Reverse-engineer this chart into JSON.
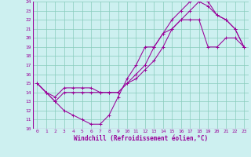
{
  "xlabel": "Windchill (Refroidissement éolien,°C)",
  "xlim": [
    -0.5,
    23.5
  ],
  "ylim": [
    10,
    24
  ],
  "xticks": [
    0,
    1,
    2,
    3,
    4,
    5,
    6,
    7,
    8,
    9,
    10,
    11,
    12,
    13,
    14,
    15,
    16,
    17,
    18,
    19,
    20,
    21,
    22,
    23
  ],
  "yticks": [
    10,
    11,
    12,
    13,
    14,
    15,
    16,
    17,
    18,
    19,
    20,
    21,
    22,
    23,
    24
  ],
  "background_color": "#cdf0f0",
  "line_color": "#990099",
  "grid_color": "#88ccbb",
  "line1_x": [
    0,
    1,
    2,
    3,
    4,
    5,
    6,
    7,
    8,
    9,
    10,
    11,
    12,
    13,
    14,
    15,
    16,
    17,
    18,
    19,
    20,
    21,
    22,
    23
  ],
  "line1_y": [
    15,
    14,
    13,
    12,
    11.5,
    11,
    10.5,
    10.5,
    11.5,
    13.5,
    15.5,
    17,
    19,
    19,
    20.5,
    21,
    22,
    22,
    22,
    19,
    19,
    20,
    20,
    19
  ],
  "line2_x": [
    0,
    1,
    2,
    3,
    4,
    5,
    6,
    7,
    8,
    9,
    10,
    11,
    12,
    13,
    14,
    15,
    16,
    17,
    18,
    19,
    20,
    21,
    22,
    23
  ],
  "line2_y": [
    15,
    14,
    13,
    14,
    14,
    14,
    14,
    14,
    14,
    14,
    15,
    16,
    17,
    19,
    20.5,
    22,
    23,
    24,
    24.5,
    24,
    22.5,
    22,
    21,
    19
  ],
  "line3_x": [
    0,
    1,
    2,
    3,
    4,
    5,
    6,
    7,
    8,
    9,
    10,
    11,
    12,
    13,
    14,
    15,
    16,
    17,
    18,
    19,
    20,
    21,
    22,
    23
  ],
  "line3_y": [
    15,
    14,
    13.5,
    14.5,
    14.5,
    14.5,
    14.5,
    14,
    14,
    14,
    15,
    15.5,
    16.5,
    17.5,
    19,
    21,
    22,
    23,
    24,
    23.5,
    22.5,
    22,
    21,
    19
  ]
}
